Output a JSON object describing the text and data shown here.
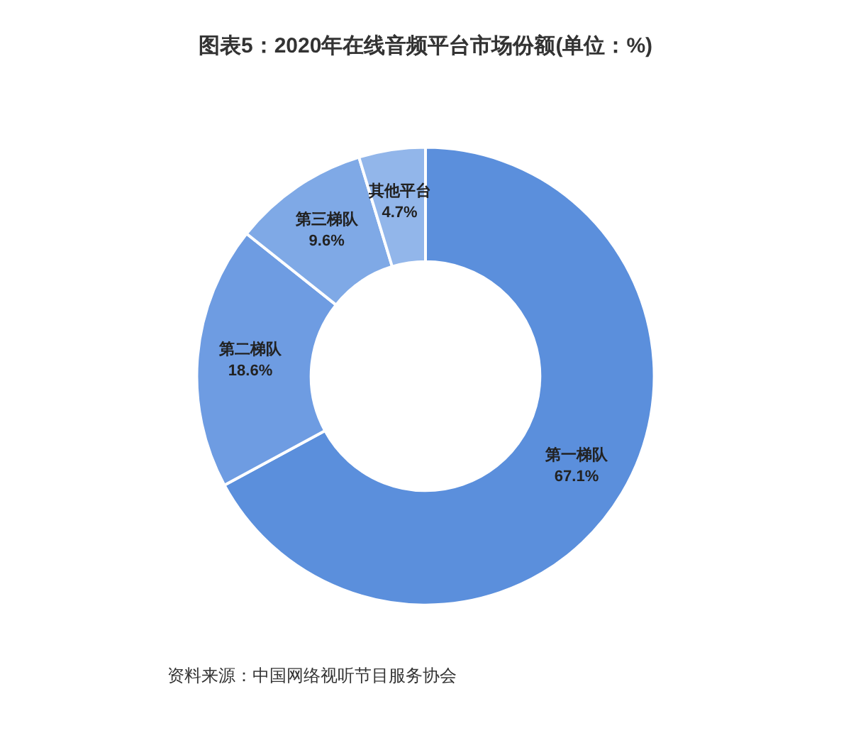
{
  "chart_data": {
    "type": "donut",
    "title": "图表5：2020年在线音频平台市场份额(单位：%)",
    "categories": [
      "第一梯队",
      "第二梯队",
      "第三梯队",
      "其他平台"
    ],
    "values": [
      67.1,
      18.6,
      9.6,
      4.7
    ],
    "value_labels": [
      "67.1%",
      "18.6%",
      "9.6%",
      "4.7%"
    ],
    "colors": [
      "#5b8fdc",
      "#6e9ce2",
      "#7fa9e6",
      "#92b6ea"
    ],
    "legend": false,
    "annotations": [
      "资料来源：中国网络视听节目服务协会"
    ]
  }
}
